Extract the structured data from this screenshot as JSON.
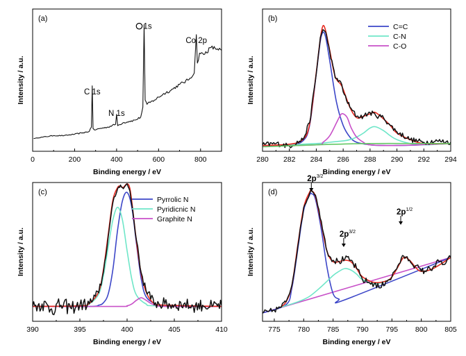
{
  "chart_data": [
    {
      "type": "line",
      "panel": "(a)",
      "xlabel": "Binding energy / eV",
      "ylabel": "Intensity / a.u.",
      "xlim": [
        0,
        900
      ],
      "xticks": [
        0,
        200,
        400,
        600,
        800
      ],
      "ylim": [
        0,
        100
      ],
      "grid": false,
      "annotations": [
        {
          "text": "C 1s",
          "x": 284,
          "y": 40
        },
        {
          "text": "N 1s",
          "x": 400,
          "y": 25
        },
        {
          "text": "O 1s",
          "x": 531,
          "y": 86
        },
        {
          "text": "Co 2p",
          "x": 780,
          "y": 76
        }
      ],
      "series": [
        {
          "color": "#111111",
          "x": [
            5,
            50,
            100,
            150,
            200,
            240,
            270,
            280,
            284,
            288,
            295,
            320,
            360,
            395,
            400,
            405,
            430,
            460,
            490,
            515,
            525,
            531,
            536,
            545,
            580,
            620,
            660,
            700,
            740,
            770,
            780,
            785,
            795,
            815,
            850,
            880,
            900
          ],
          "y": [
            9,
            10,
            11,
            11,
            12,
            13,
            14,
            17,
            46,
            16,
            15,
            16,
            17,
            19,
            26,
            18,
            20,
            21,
            22,
            24,
            31,
            89,
            36,
            33,
            36,
            40,
            43,
            47,
            50,
            55,
            82,
            62,
            69,
            68,
            73,
            72,
            71
          ],
          "noise": [
            0,
            0.3,
            0.3,
            0.3,
            0.4,
            0.4,
            0.4,
            0.4,
            0,
            0.4,
            0.5,
            0.5,
            0.5,
            0.6,
            0,
            0.6,
            0.6,
            0.7,
            0.7,
            0.7,
            0.8,
            0,
            0.8,
            0.8,
            1.0,
            1.0,
            1.0,
            1.1,
            1.2,
            1.2,
            0,
            1.4,
            1.5,
            1.5,
            1.5,
            1.5,
            1.5
          ]
        }
      ]
    },
    {
      "type": "line",
      "panel": "(b)",
      "xlabel": "Binding energy / eV",
      "ylabel": "Intensity / a.u.",
      "xlim": [
        280,
        294
      ],
      "xticks": [
        280,
        282,
        284,
        286,
        288,
        290,
        292,
        294
      ],
      "ylim": [
        0,
        110
      ],
      "grid": false,
      "legend_position": "top-right",
      "legend": [
        "C=C",
        "C-N",
        "C-O"
      ],
      "series": [
        {
          "name": "C=C",
          "color": "#3c46c8",
          "x": [
            280,
            282,
            283,
            283.5,
            284,
            284.3,
            284.5,
            284.7,
            285,
            285.5,
            286,
            286.5,
            287,
            288,
            289,
            290,
            292,
            294
          ],
          "y": [
            4,
            5,
            8,
            20,
            60,
            85,
            92,
            88,
            70,
            38,
            20,
            11,
            7,
            5,
            4.5,
            4.5,
            5,
            6
          ]
        },
        {
          "name": "C-N",
          "color": "#6ee6c8",
          "x": [
            280,
            284,
            285,
            286,
            286.5,
            287,
            287.5,
            288,
            288.4,
            289,
            289.5,
            290,
            291,
            292,
            294
          ],
          "y": [
            4,
            6,
            7,
            8,
            9,
            11,
            14,
            18,
            19,
            16,
            12,
            9,
            6,
            5,
            6
          ]
        },
        {
          "name": "C-O",
          "color": "#c850c8",
          "x": [
            280,
            284,
            284.5,
            285,
            285.5,
            285.8,
            286,
            286.3,
            286.6,
            287,
            287.5,
            288,
            290,
            294
          ],
          "y": [
            4,
            5,
            7,
            12,
            22,
            28,
            29,
            26,
            18,
            11,
            7,
            5,
            4.5,
            6
          ]
        },
        {
          "color": "#e6281e",
          "x": [
            280,
            282,
            283,
            283.5,
            284,
            284.3,
            284.5,
            284.7,
            285,
            285.4,
            285.8,
            286,
            286.5,
            287,
            287.5,
            288,
            288.4,
            289,
            289.5,
            290,
            291,
            292,
            294
          ],
          "y": [
            4.5,
            5.5,
            9,
            21,
            61,
            87,
            97,
            93,
            78,
            58,
            52,
            48,
            34,
            26,
            27,
            29,
            30,
            25,
            20,
            14,
            9,
            6,
            6
          ]
        },
        {
          "color": "#111111",
          "x": [
            280,
            281,
            282,
            283,
            283.5,
            284,
            284.3,
            284.5,
            284.7,
            285,
            285.4,
            285.8,
            286,
            286.5,
            287,
            287.5,
            288,
            288.4,
            289,
            289.5,
            290,
            291,
            292,
            293,
            294
          ],
          "y": [
            5,
            6,
            4,
            9,
            22,
            60,
            88,
            94,
            92,
            77,
            57,
            54,
            46,
            34,
            27,
            27,
            30,
            28,
            26,
            20,
            15,
            9,
            7,
            8,
            7
          ],
          "noise": [
            2,
            2,
            2,
            2,
            2,
            1.5,
            1,
            1,
            1,
            1.5,
            2,
            2,
            2,
            2,
            2,
            2,
            2,
            2,
            2,
            2,
            2,
            2,
            2,
            2,
            2
          ]
        },
        {
          "color": "#64c864",
          "x": [
            280,
            284,
            288,
            292,
            294
          ],
          "y": [
            3.5,
            5,
            6,
            6,
            6
          ]
        }
      ]
    },
    {
      "type": "line",
      "panel": "(c)",
      "xlabel": "Binding energy / eV",
      "ylabel": "Intensity / a.u.",
      "xlim": [
        390,
        410
      ],
      "xticks": [
        390,
        395,
        400,
        405,
        410
      ],
      "ylim": [
        -12,
        100
      ],
      "grid": false,
      "legend_position": "top-right",
      "legend": [
        "Pyrrolic N",
        "Pyridicnic N",
        "Graphite N"
      ],
      "series": [
        {
          "name": "Pyrrolic N",
          "color": "#3c46c8",
          "x": [
            390,
            396,
            397,
            397.5,
            398,
            398.5,
            399,
            399.5,
            400,
            400.5,
            401,
            401.5,
            402,
            403,
            404,
            410
          ],
          "y": [
            0,
            0,
            1,
            3,
            10,
            30,
            62,
            85,
            92,
            80,
            50,
            22,
            8,
            2,
            0.5,
            0
          ]
        },
        {
          "name": "Pyridicnic N",
          "color": "#6ee6c8",
          "x": [
            390,
            395,
            396,
            397,
            397.5,
            398,
            398.5,
            399,
            399.5,
            400,
            400.5,
            401,
            402,
            403,
            410
          ],
          "y": [
            0,
            0.5,
            2,
            10,
            25,
            48,
            70,
            80,
            70,
            45,
            22,
            9,
            2,
            0.5,
            0
          ]
        },
        {
          "name": "Graphite N",
          "color": "#c850c8",
          "x": [
            390,
            399,
            400,
            400.5,
            401,
            401.5,
            402,
            402.5,
            403,
            404,
            410
          ],
          "y": [
            0,
            0,
            0.5,
            2,
            5,
            7,
            5,
            2.5,
            1,
            0,
            0
          ]
        },
        {
          "color": "#e6281e",
          "x": [
            390,
            395,
            396,
            397,
            397.5,
            398,
            398.5,
            399,
            399.3,
            399.6,
            400,
            400.3,
            400.6,
            401,
            401.5,
            402,
            402.5,
            403,
            404,
            410
          ],
          "y": [
            0,
            0.5,
            2.5,
            12,
            30,
            58,
            86,
            96,
            97,
            96,
            99,
            95,
            78,
            52,
            26,
            12,
            5,
            2,
            1,
            0
          ]
        },
        {
          "color": "#111111",
          "x": [
            390,
            391,
            392,
            393,
            394,
            395,
            396,
            397,
            397.5,
            398,
            398.5,
            399,
            399.3,
            399.6,
            400,
            400.3,
            400.6,
            401,
            401.5,
            402,
            402.5,
            403,
            404,
            405,
            406,
            407,
            408,
            409,
            410
          ],
          "y": [
            0,
            2,
            -2,
            1,
            -1,
            1,
            2,
            11,
            28,
            56,
            84,
            95,
            98,
            95,
            99,
            93,
            77,
            53,
            27,
            13,
            6,
            3,
            2,
            1,
            2,
            0,
            1,
            0,
            1
          ],
          "noise": [
            5,
            6,
            6,
            6,
            6,
            5,
            5,
            4,
            3,
            2,
            1.5,
            1.5,
            1,
            1,
            1,
            1,
            1.5,
            2,
            3,
            4,
            5,
            5,
            5,
            5,
            5,
            5,
            5,
            5,
            5
          ]
        }
      ]
    },
    {
      "type": "line",
      "panel": "(d)",
      "xlabel": "Binding energy / eV",
      "ylabel": "Intensity / a.u.",
      "xlim": [
        773,
        805
      ],
      "xticks": [
        775,
        780,
        785,
        790,
        795,
        800,
        805
      ],
      "ylim": [
        0,
        100
      ],
      "grid": false,
      "annotations": [
        {
          "text": "2p",
          "sup": "3/2",
          "x": 781.3,
          "y": 94
        },
        {
          "text": "2p",
          "sup": "3/2",
          "x": 786.8,
          "y": 54
        },
        {
          "text": "2p",
          "sup": "1/2",
          "x": 796.5,
          "y": 70
        }
      ],
      "series": [
        {
          "color": "#c850c8",
          "x": [
            773,
            805
          ],
          "y": [
            6,
            46
          ]
        },
        {
          "color": "#3c46c8",
          "x": [
            773,
            777,
            778,
            779,
            780,
            781,
            781.3,
            782,
            783,
            784,
            785,
            786,
            787,
            805
          ],
          "y": [
            6,
            12,
            24,
            52,
            80,
            91,
            92,
            88,
            66,
            38,
            20,
            16,
            15.5,
            46
          ]
        },
        {
          "color": "#6ee6c8",
          "x": [
            776,
            779,
            781,
            783,
            785,
            786,
            787,
            788,
            789,
            790,
            792,
            794,
            795,
            796,
            797,
            798,
            799,
            800,
            802,
            805
          ],
          "y": [
            10,
            14,
            18,
            25,
            33,
            36,
            38,
            37,
            34,
            30,
            27,
            29,
            32,
            39,
            46,
            44,
            39,
            36,
            38,
            46
          ]
        },
        {
          "color": "#e6281e",
          "x": [
            776,
            777,
            778,
            779,
            780,
            781,
            781.3,
            782,
            783,
            784,
            785,
            786,
            787,
            788,
            789,
            790,
            792,
            794,
            795,
            796,
            797,
            798,
            799,
            800,
            802,
            805
          ],
          "y": [
            10,
            14,
            26,
            55,
            82,
            93,
            94,
            90,
            70,
            50,
            43,
            43,
            44,
            43,
            38,
            32,
            28,
            29,
            32,
            39,
            46,
            44,
            39,
            36,
            38,
            46
          ]
        },
        {
          "color": "#111111",
          "x": [
            773,
            774,
            775,
            776,
            777,
            778,
            779,
            780,
            781,
            781.3,
            782,
            783,
            784,
            785,
            786,
            787,
            788,
            789,
            790,
            791,
            792,
            793,
            794,
            795,
            796,
            797,
            798,
            799,
            800,
            801,
            802,
            803,
            804,
            805
          ],
          "y": [
            6,
            7,
            8,
            10,
            14,
            26,
            54,
            82,
            92,
            95,
            91,
            72,
            50,
            44,
            43,
            45,
            44,
            38,
            30,
            28,
            27,
            24,
            29,
            32,
            40,
            47,
            44,
            40,
            36,
            37,
            39,
            43,
            41,
            46
          ],
          "noise": [
            2,
            2,
            2,
            2,
            2,
            2,
            1.5,
            1.5,
            1,
            1,
            1,
            1.5,
            2,
            2.5,
            2.5,
            2.5,
            2.5,
            2.5,
            2.5,
            2.5,
            2.5,
            2.5,
            2.5,
            2.5,
            2,
            2,
            2,
            2.5,
            2.5,
            2.5,
            2.5,
            2.5,
            2.5,
            2.5
          ]
        }
      ]
    }
  ]
}
